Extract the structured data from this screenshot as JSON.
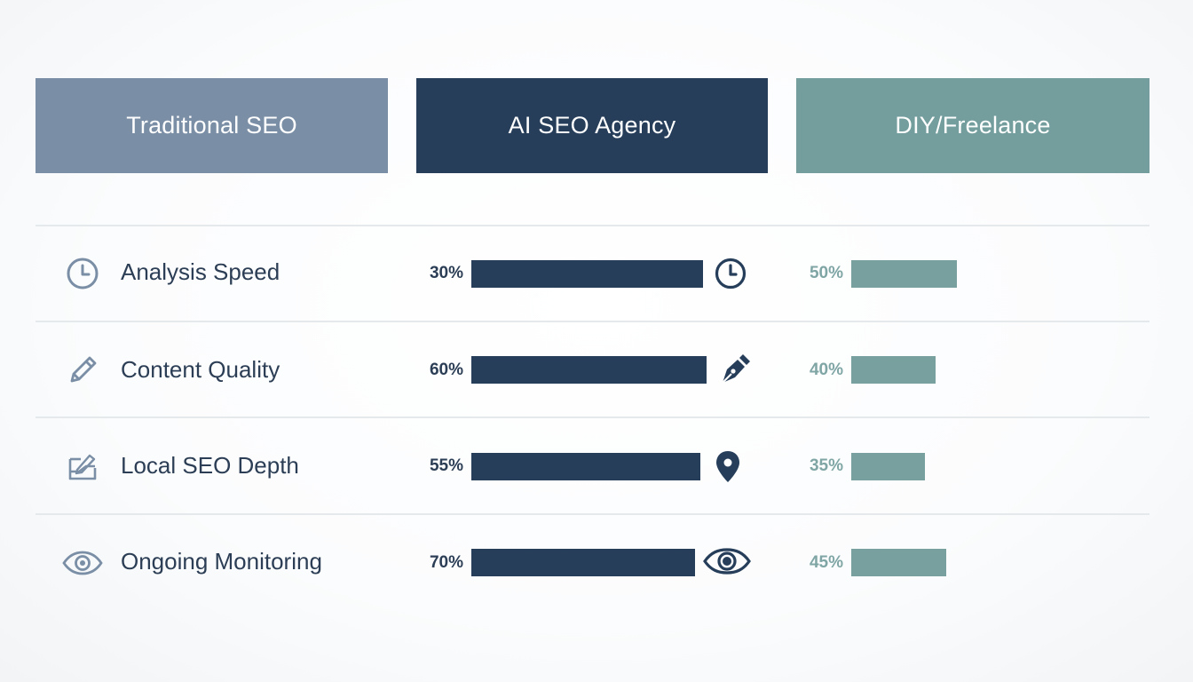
{
  "columns": [
    {
      "label": "Traditional SEO"
    },
    {
      "label": "AI SEO Agency"
    },
    {
      "label": "DIY/Freelance"
    }
  ],
  "colors": {
    "traditional": "#7a8ea6",
    "agency": "#263e5a",
    "diy": "#739e9d",
    "diy_bar": "#77a09f",
    "text": "#2c3e55",
    "diy_text": "#7fa6a5",
    "divider": "#e6e9ec"
  },
  "chart_data": {
    "type": "bar",
    "categories": [
      "Analysis Speed",
      "Content Quality",
      "Local SEO Depth",
      "Ongoing Monitoring"
    ],
    "series": [
      {
        "name": "AI SEO Agency",
        "values": [
          30,
          60,
          55,
          70
        ],
        "labels": [
          "30%",
          "60%",
          "55%",
          "70%"
        ]
      },
      {
        "name": "DIY/Freelance",
        "values": [
          50,
          40,
          35,
          45
        ],
        "labels": [
          "50%",
          "40%",
          "35%",
          "45%"
        ]
      }
    ]
  },
  "rows": [
    {
      "label": "Analysis Speed",
      "icon": "clock-icon",
      "agency_icon": "clock-icon",
      "agency_pct": "30%",
      "diy_pct": "50%"
    },
    {
      "label": "Content Quality",
      "icon": "pencil-icon",
      "agency_icon": "pen-nib-icon",
      "agency_pct": "60%",
      "diy_pct": "40%"
    },
    {
      "label": "Local SEO Depth",
      "icon": "map-edit-icon",
      "agency_icon": "map-pin-icon",
      "agency_pct": "55%",
      "diy_pct": "35%"
    },
    {
      "label": "Ongoing Monitoring",
      "icon": "eye-icon",
      "agency_icon": "eye-icon",
      "agency_pct": "70%",
      "diy_pct": "45%"
    }
  ]
}
